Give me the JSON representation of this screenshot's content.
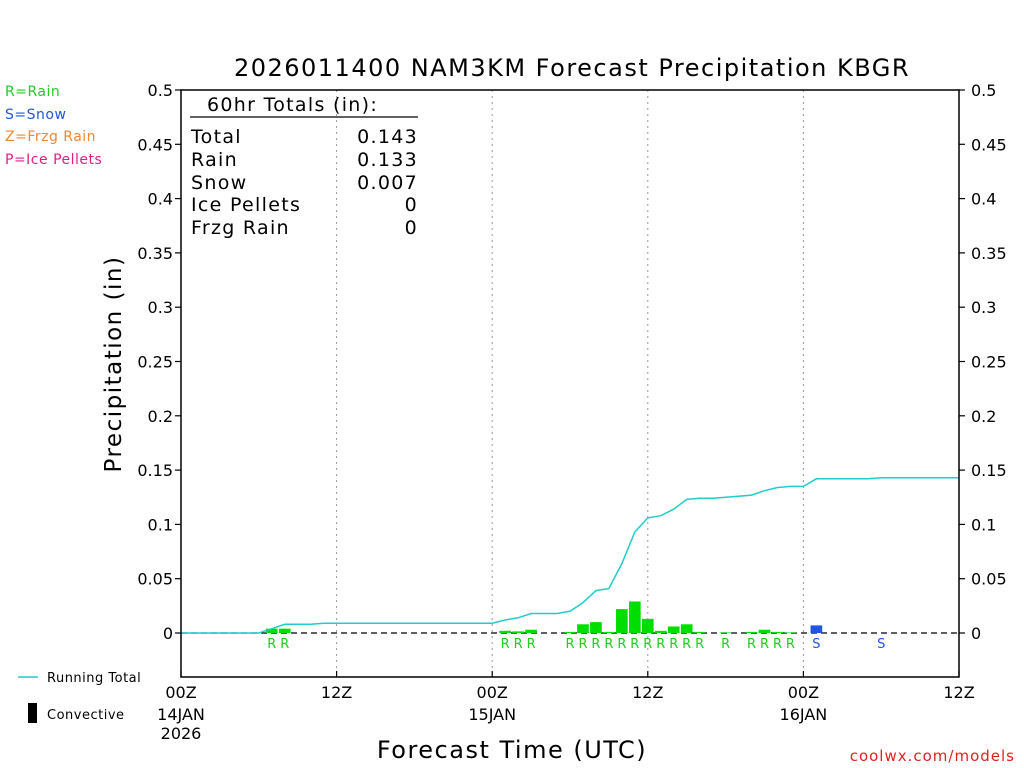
{
  "chart_data": {
    "type": "bar",
    "title": "2026011400 NAM3KM Forecast Precipitation KBGR",
    "xlabel": "Forecast Time (UTC)",
    "ylabel": "Precipitation (in)",
    "ylim": [
      -0.04,
      0.5
    ],
    "xlim_hours": [
      0,
      60
    ],
    "y_ticks": [
      0.5,
      0.45,
      0.4,
      0.35,
      0.3,
      0.25,
      0.2,
      0.15,
      0.1,
      0.05,
      0
    ],
    "y_tick_labels": [
      "0.5",
      "0.45",
      "0.4",
      "0.35",
      "0.3",
      "0.25",
      "0.2",
      "0.15",
      "0.1",
      "0.05",
      "0"
    ],
    "x_ticks": [
      {
        "hour": 0,
        "label": "00Z",
        "date": "14JAN",
        "year": "2026"
      },
      {
        "hour": 12,
        "label": "12Z",
        "date": "",
        "year": ""
      },
      {
        "hour": 24,
        "label": "00Z",
        "date": "15JAN",
        "year": ""
      },
      {
        "hour": 36,
        "label": "12Z",
        "date": "",
        "year": ""
      },
      {
        "hour": 48,
        "label": "00Z",
        "date": "16JAN",
        "year": ""
      },
      {
        "hour": 60,
        "label": "12Z",
        "date": "",
        "year": ""
      }
    ],
    "vertical_gridlines_hours": [
      12,
      24,
      36,
      48
    ],
    "legend_types": [
      {
        "label": "R=Rain",
        "color": "#22cc22"
      },
      {
        "label": "S=Snow",
        "color": "#2255dd"
      },
      {
        "label": "Z=Frzg Rain",
        "color": "#ee8833"
      },
      {
        "label": "P=Ice Pellets",
        "color": "#e0208a"
      }
    ],
    "legend_lines": {
      "running_total": "Running Total",
      "convective": "Convective"
    },
    "totals": {
      "header": "60hr Totals (in):",
      "rows": [
        {
          "label": "Total",
          "value": "0.143"
        },
        {
          "label": "Rain",
          "value": "0.133"
        },
        {
          "label": "Snow",
          "value": "0.007"
        },
        {
          "label": "Ice Pellets",
          "value": "0"
        },
        {
          "label": "Frzg Rain",
          "value": "0"
        }
      ]
    },
    "series": [
      {
        "name": "Hourly Precipitation",
        "bars": [
          {
            "hour": 7,
            "value": 0.004,
            "ptype": "R"
          },
          {
            "hour": 8,
            "value": 0.004,
            "ptype": "R"
          },
          {
            "hour": 25,
            "value": 0.002,
            "ptype": "R"
          },
          {
            "hour": 26,
            "value": 0.0015,
            "ptype": "R"
          },
          {
            "hour": 27,
            "value": 0.003,
            "ptype": "R"
          },
          {
            "hour": 30,
            "value": 0.001,
            "ptype": "R"
          },
          {
            "hour": 31,
            "value": 0.008,
            "ptype": "R"
          },
          {
            "hour": 32,
            "value": 0.01,
            "ptype": "R"
          },
          {
            "hour": 33,
            "value": 0.001,
            "ptype": "R"
          },
          {
            "hour": 34,
            "value": 0.022,
            "ptype": "R"
          },
          {
            "hour": 35,
            "value": 0.029,
            "ptype": "R"
          },
          {
            "hour": 36,
            "value": 0.013,
            "ptype": "R"
          },
          {
            "hour": 37,
            "value": 0.002,
            "ptype": "R"
          },
          {
            "hour": 38,
            "value": 0.006,
            "ptype": "R"
          },
          {
            "hour": 39,
            "value": 0.008,
            "ptype": "R"
          },
          {
            "hour": 40,
            "value": 0.001,
            "ptype": "R"
          },
          {
            "hour": 42,
            "value": 0.0005,
            "ptype": "R"
          },
          {
            "hour": 44,
            "value": 0.001,
            "ptype": "R"
          },
          {
            "hour": 45,
            "value": 0.003,
            "ptype": "R"
          },
          {
            "hour": 46,
            "value": 0.001,
            "ptype": "R"
          },
          {
            "hour": 47,
            "value": 0.0005,
            "ptype": "R"
          },
          {
            "hour": 49,
            "value": 0.007,
            "ptype": "S"
          },
          {
            "hour": 54,
            "value": 0.0,
            "ptype": "S"
          }
        ]
      },
      {
        "name": "Running Total",
        "points": [
          [
            0,
            0
          ],
          [
            1,
            0
          ],
          [
            2,
            0
          ],
          [
            3,
            0
          ],
          [
            4,
            0
          ],
          [
            5,
            0
          ],
          [
            6,
            0
          ],
          [
            7,
            0.004
          ],
          [
            8,
            0.008
          ],
          [
            9,
            0.008
          ],
          [
            10,
            0.008
          ],
          [
            11,
            0.009
          ],
          [
            12,
            0.009
          ],
          [
            13,
            0.009
          ],
          [
            14,
            0.009
          ],
          [
            15,
            0.009
          ],
          [
            16,
            0.009
          ],
          [
            17,
            0.009
          ],
          [
            18,
            0.009
          ],
          [
            19,
            0.009
          ],
          [
            20,
            0.009
          ],
          [
            21,
            0.009
          ],
          [
            22,
            0.009
          ],
          [
            23,
            0.009
          ],
          [
            24,
            0.009
          ],
          [
            25,
            0.012
          ],
          [
            26,
            0.014
          ],
          [
            27,
            0.018
          ],
          [
            28,
            0.018
          ],
          [
            29,
            0.018
          ],
          [
            30,
            0.02
          ],
          [
            31,
            0.028
          ],
          [
            32,
            0.039
          ],
          [
            33,
            0.041
          ],
          [
            34,
            0.064
          ],
          [
            35,
            0.093
          ],
          [
            36,
            0.106
          ],
          [
            37,
            0.108
          ],
          [
            38,
            0.114
          ],
          [
            39,
            0.123
          ],
          [
            40,
            0.124
          ],
          [
            41,
            0.124
          ],
          [
            42,
            0.125
          ],
          [
            43,
            0.126
          ],
          [
            44,
            0.127
          ],
          [
            45,
            0.131
          ],
          [
            46,
            0.134
          ],
          [
            47,
            0.135
          ],
          [
            48,
            0.135
          ],
          [
            49,
            0.142
          ],
          [
            50,
            0.142
          ],
          [
            51,
            0.142
          ],
          [
            52,
            0.142
          ],
          [
            53,
            0.142
          ],
          [
            54,
            0.143
          ],
          [
            55,
            0.143
          ],
          [
            56,
            0.143
          ],
          [
            57,
            0.143
          ],
          [
            58,
            0.143
          ],
          [
            59,
            0.143
          ],
          [
            60,
            0.143
          ]
        ]
      }
    ],
    "colors": {
      "rain": "#00dd00",
      "snow": "#2255dd",
      "running_total": "#22cccc",
      "grid": "#999999"
    },
    "credit": "coolwx.com/models"
  }
}
